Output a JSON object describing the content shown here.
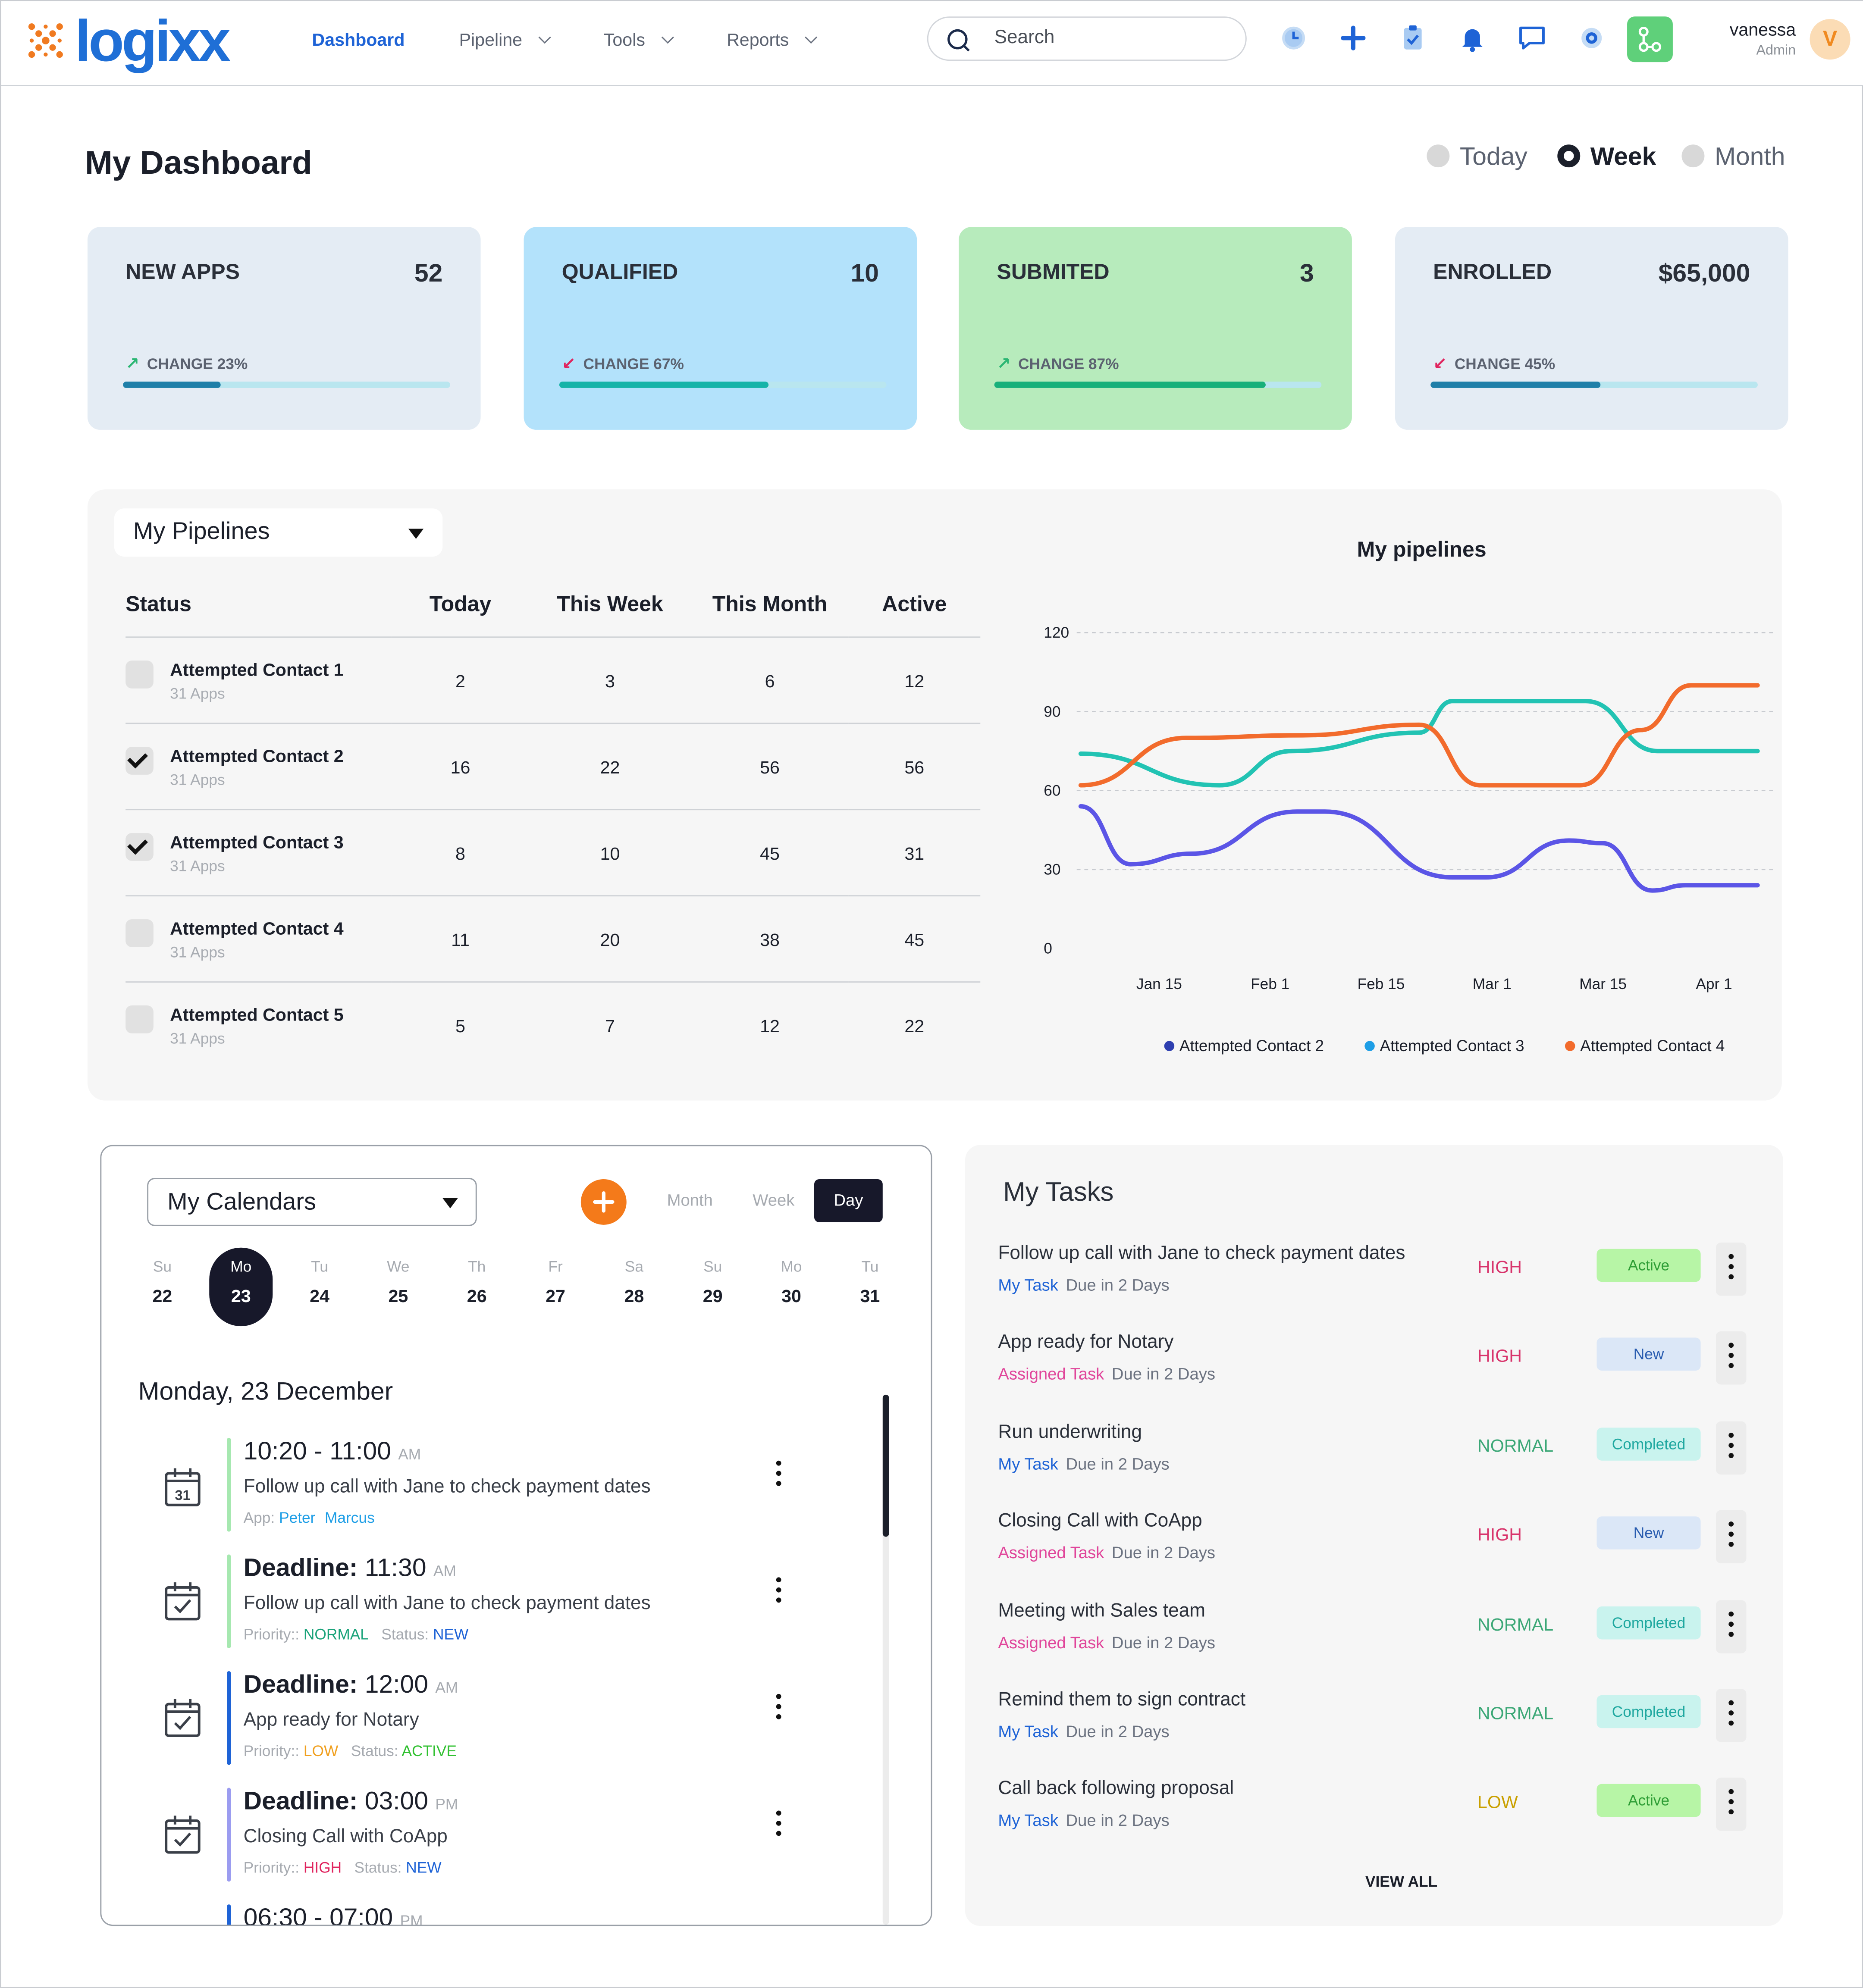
{
  "header": {
    "logo": "logixx",
    "nav": [
      {
        "label": "Dashboard",
        "active": true,
        "dropdown": false
      },
      {
        "label": "Pipeline",
        "active": false,
        "dropdown": true
      },
      {
        "label": "Tools",
        "active": false,
        "dropdown": true
      },
      {
        "label": "Reports",
        "active": false,
        "dropdown": true
      }
    ],
    "search_placeholder": "Search",
    "icons": [
      "clock-icon",
      "plus-icon",
      "clipboard-check-icon",
      "bell-icon",
      "chat-icon",
      "settings-icon",
      "workflow-icon"
    ],
    "user": {
      "name": "vanessa",
      "role": "Admin",
      "initial": "V"
    }
  },
  "page": {
    "title": "My Dashboard",
    "periods": [
      {
        "label": "Today",
        "selected": false
      },
      {
        "label": "Week",
        "selected": true
      },
      {
        "label": "Month",
        "selected": false
      }
    ]
  },
  "stats": [
    {
      "label": "NEW APPS",
      "value": "52",
      "change": "CHANGE 23%",
      "direction": "up",
      "progress": 0.3,
      "bg": "#e4ecf4",
      "fill": "#1f7fa8"
    },
    {
      "label": "QUALIFIED",
      "value": "10",
      "change": "CHANGE 67%",
      "direction": "down",
      "progress": 0.64,
      "bg": "#b3e2fb",
      "fill": "#16b3a8"
    },
    {
      "label": "SUBMITED",
      "value": "3",
      "change": "CHANGE 87%",
      "direction": "up",
      "progress": 0.83,
      "bg": "#b7ebbc",
      "fill": "#17b07a"
    },
    {
      "label": "ENROLLED",
      "value": "$65,000",
      "change": "CHANGE 45%",
      "direction": "down",
      "progress": 0.52,
      "bg": "#e4ecf4",
      "fill": "#1f7fa8"
    }
  ],
  "pipelines": {
    "dropdown": "My Pipelines",
    "columns": [
      "Status",
      "Today",
      "This Week",
      "This Month",
      "Active"
    ],
    "rows": [
      {
        "name": "Attempted Contact 1",
        "sub": "31 Apps",
        "checked": false,
        "today": "2",
        "week": "3",
        "month": "6",
        "active": "12"
      },
      {
        "name": "Attempted Contact 2",
        "sub": "31 Apps",
        "checked": true,
        "today": "16",
        "week": "22",
        "month": "56",
        "active": "56"
      },
      {
        "name": "Attempted Contact 3",
        "sub": "31 Apps",
        "checked": true,
        "today": "8",
        "week": "10",
        "month": "45",
        "active": "31"
      },
      {
        "name": "Attempted Contact 4",
        "sub": "31 Apps",
        "checked": false,
        "today": "11",
        "week": "20",
        "month": "38",
        "active": "45"
      },
      {
        "name": "Attempted Contact 5",
        "sub": "31 Apps",
        "checked": false,
        "today": "5",
        "week": "7",
        "month": "12",
        "active": "22"
      }
    ]
  },
  "chart_data": {
    "type": "line",
    "title": "My pipelines",
    "xlabel": "",
    "ylabel": "",
    "x_ticks": [
      "Jan 15",
      "Feb 1",
      "Feb 15",
      "Mar 1",
      "Mar 15",
      "Apr 1"
    ],
    "y_ticks": [
      0,
      30,
      60,
      90,
      120
    ],
    "ylim": [
      0,
      120
    ],
    "grid": true,
    "legend_position": "bottom",
    "series": [
      {
        "name": "Attempted Contact 2",
        "color": "#5b55e6",
        "legend_color": "#2e3fb0",
        "points": [
          [
            -0.65,
            54
          ],
          [
            -0.2,
            32
          ],
          [
            0.35,
            36
          ],
          [
            1.3,
            52
          ],
          [
            1.55,
            52
          ],
          [
            2.7,
            27
          ],
          [
            3.0,
            27
          ],
          [
            3.75,
            41
          ],
          [
            4.05,
            40
          ],
          [
            4.5,
            22
          ],
          [
            4.8,
            24
          ],
          [
            5.45,
            24
          ]
        ]
      },
      {
        "name": "Attempted Contact 3",
        "color": "#22c3b3",
        "legend_color": "#1e9ee6",
        "points": [
          [
            -0.65,
            74
          ],
          [
            0.6,
            62
          ],
          [
            1.25,
            75
          ],
          [
            2.4,
            82
          ],
          [
            2.7,
            94
          ],
          [
            3.9,
            94
          ],
          [
            4.55,
            75
          ],
          [
            5.45,
            75
          ]
        ]
      },
      {
        "name": "Attempted Contact 4",
        "color": "#f26b2c",
        "legend_color": "#f26b2c",
        "points": [
          [
            -0.65,
            62
          ],
          [
            0.3,
            80
          ],
          [
            1.35,
            81
          ],
          [
            2.4,
            85
          ],
          [
            2.95,
            62
          ],
          [
            3.85,
            62
          ],
          [
            4.4,
            83
          ],
          [
            4.85,
            100
          ],
          [
            5.45,
            100
          ]
        ]
      }
    ]
  },
  "calendar": {
    "dropdown": "My Calendars",
    "views": [
      {
        "label": "Month",
        "active": false
      },
      {
        "label": "Week",
        "active": false
      },
      {
        "label": "Day",
        "active": true
      }
    ],
    "days": [
      {
        "dn": "Su",
        "dd": "22",
        "selected": false
      },
      {
        "dn": "Mo",
        "dd": "23",
        "selected": true
      },
      {
        "dn": "Tu",
        "dd": "24",
        "selected": false
      },
      {
        "dn": "We",
        "dd": "25",
        "selected": false
      },
      {
        "dn": "Th",
        "dd": "26",
        "selected": false
      },
      {
        "dn": "Fr",
        "dd": "27",
        "selected": false
      },
      {
        "dn": "Sa",
        "dd": "28",
        "selected": false
      },
      {
        "dn": "Su",
        "dd": "29",
        "selected": false
      },
      {
        "dn": "Mo",
        "dd": "30",
        "selected": false
      },
      {
        "dn": "Tu",
        "dd": "31",
        "selected": false
      }
    ],
    "date_heading": "Monday, 23 December",
    "events": [
      {
        "time": "10:20 - 11:00",
        "ampm": "AM",
        "desc": "Follow up call with Jane to check payment dates",
        "meta_label": "App:",
        "meta": [
          {
            "text": "Peter",
            "color": "#1e9ee6"
          },
          {
            "text": "Marcus",
            "color": "#1e9ee6"
          }
        ],
        "bar": "#a6e8b0",
        "icon": "calendar-31-icon",
        "icon_text": "31"
      },
      {
        "time_label": "Deadline:",
        "time": "11:30",
        "ampm": "AM",
        "desc": "Follow up call with Jane to check payment dates",
        "priority": "NORMAL",
        "priority_color": "#1aa37a",
        "status": "NEW",
        "status_color": "#1e63d6",
        "bar": "#a6e8b0",
        "icon": "calendar-check-icon"
      },
      {
        "time_label": "Deadline:",
        "time": "12:00",
        "ampm": "AM",
        "desc": "App ready for Notary",
        "priority": "LOW",
        "priority_color": "#f0a020",
        "status": "ACTIVE",
        "status_color": "#30c030",
        "bar": "#1e63d6",
        "icon": "calendar-check-icon"
      },
      {
        "time_label": "Deadline:",
        "time": "03:00",
        "ampm": "PM",
        "desc": "Closing Call with CoApp",
        "priority": "HIGH",
        "priority_color": "#e0245e",
        "status": "NEW",
        "status_color": "#1e63d6",
        "bar": "#9b9cf0",
        "icon": "calendar-check-icon"
      },
      {
        "time": "06:30 - 07:00",
        "ampm": "PM",
        "desc": "",
        "bar": "#1e63d6",
        "partial": true
      }
    ],
    "priority_label": "Priority::",
    "status_label": "Status:"
  },
  "tasks": {
    "title": "My Tasks",
    "view_all": "VIEW ALL",
    "items": [
      {
        "title": "Follow up call with Jane to check payment dates",
        "type": "My Task",
        "type_color": "#1e63d6",
        "due": "Due in 2 Days",
        "priority": "HIGH",
        "priority_color": "#d8336b",
        "status": "Active",
        "status_bg": "#b7f5a6",
        "status_color": "#2e9e36"
      },
      {
        "title": "App ready for Notary",
        "type": "Assigned Task",
        "type_color": "#e0459a",
        "due": "Due in 2 Days",
        "priority": "HIGH",
        "priority_color": "#d8336b",
        "status": "New",
        "status_bg": "#dbe7f7",
        "status_color": "#2a5db0"
      },
      {
        "title": "Run underwriting",
        "type": "My Task",
        "type_color": "#1e63d6",
        "due": "Due in 2 Days",
        "priority": "NORMAL",
        "priority_color": "#3ba776",
        "status": "Completed",
        "status_bg": "#c9f3ee",
        "status_color": "#20a8a0"
      },
      {
        "title": "Closing Call with CoApp",
        "type": "Assigned Task",
        "type_color": "#e0459a",
        "due": "Due in 2 Days",
        "priority": "HIGH",
        "priority_color": "#d8336b",
        "status": "New",
        "status_bg": "#dbe7f7",
        "status_color": "#2a5db0"
      },
      {
        "title": "Meeting with Sales team",
        "type": "Assigned Task",
        "type_color": "#e0459a",
        "due": "Due in 2 Days",
        "priority": "NORMAL",
        "priority_color": "#3ba776",
        "status": "Completed",
        "status_bg": "#c9f3ee",
        "status_color": "#20a8a0"
      },
      {
        "title": "Remind them to sign contract",
        "type": "My Task",
        "type_color": "#1e63d6",
        "due": "Due in 2 Days",
        "priority": "NORMAL",
        "priority_color": "#3ba776",
        "status": "Completed",
        "status_bg": "#c9f3ee",
        "status_color": "#20a8a0"
      },
      {
        "title": "Call back following proposal",
        "type": "My Task",
        "type_color": "#1e63d6",
        "due": "Due in 2 Days",
        "priority": "LOW",
        "priority_color": "#c9a000",
        "status": "Active",
        "status_bg": "#b7f5a6",
        "status_color": "#2e9e36"
      }
    ]
  }
}
